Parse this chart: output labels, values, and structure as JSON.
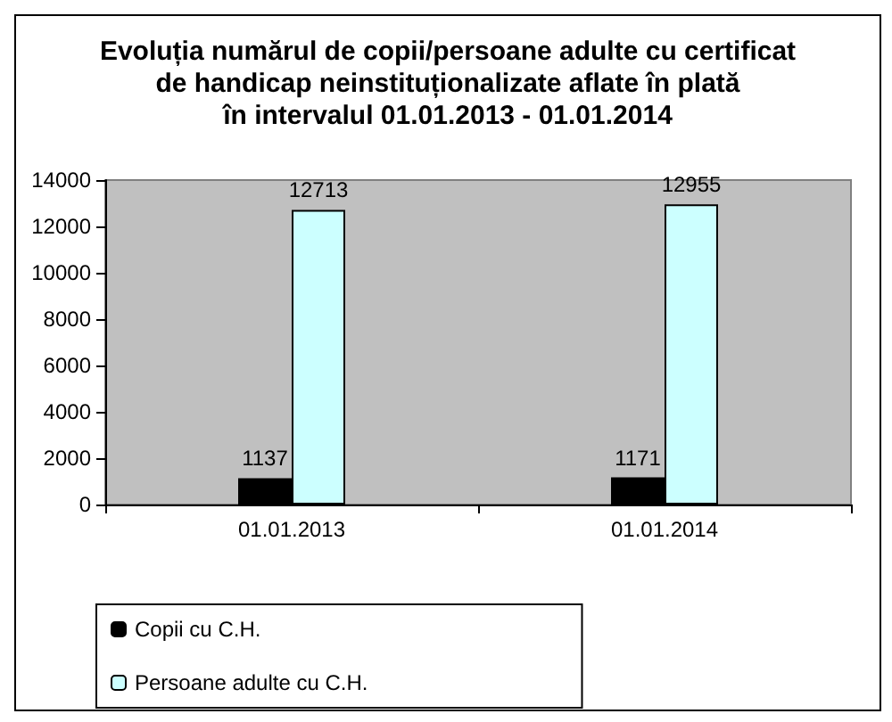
{
  "chart_data": {
    "type": "bar",
    "title": "Evoluția numărul de copii/persoane adulte cu certificat\nde handicap neinstituționalizate aflate în plată\nîn intervalul 01.01.2013 - 01.01.2014",
    "categories": [
      "01.01.2013",
      "01.01.2014"
    ],
    "series": [
      {
        "name": "Copii cu C.H.",
        "color": "#000000",
        "values": [
          1137,
          1171
        ]
      },
      {
        "name": "Persoane adulte cu C.H.",
        "color": "#ccffff",
        "values": [
          12713,
          12955
        ]
      }
    ],
    "ylim": [
      0,
      14000
    ],
    "yticks": [
      0,
      2000,
      4000,
      6000,
      8000,
      10000,
      12000,
      14000
    ],
    "grid": false,
    "legend": "bottom left",
    "data_labels": true
  }
}
